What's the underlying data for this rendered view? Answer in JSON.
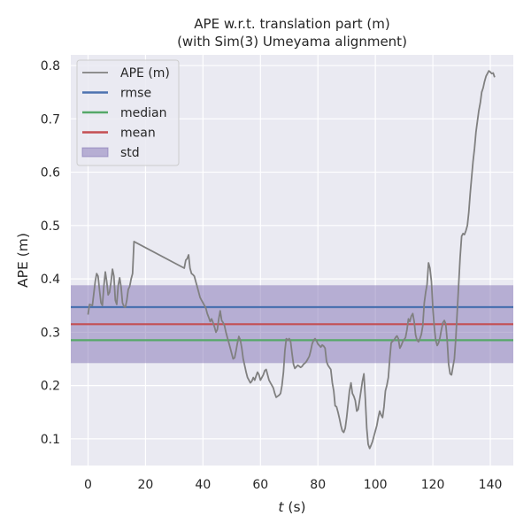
{
  "chart_data": {
    "type": "line",
    "title": "APE w.r.t. translation part (m)",
    "subtitle": "(with Sim(3) Umeyama alignment)",
    "xlabel_var": "t",
    "xlabel_unit": " (s)",
    "ylabel": "APE (m)",
    "xlim": [
      -6,
      148
    ],
    "ylim": [
      0.05,
      0.82
    ],
    "xticks": [
      0,
      20,
      40,
      60,
      80,
      100,
      120,
      140
    ],
    "yticks": [
      0.1,
      0.2,
      0.3,
      0.4,
      0.5,
      0.6,
      0.7,
      0.8
    ],
    "grid": true,
    "legend_position": "top-left",
    "colors": {
      "background": "#eaeaf2",
      "grid": "#ffffff",
      "ape": "#808080",
      "rmse": "#4c72b0",
      "median": "#55a868",
      "mean": "#c44e52",
      "std": "#8172b3"
    },
    "stats": {
      "rmse": 0.347,
      "median": 0.285,
      "mean": 0.315,
      "std_low": 0.242,
      "std_high": 0.388
    },
    "legend": [
      {
        "key": "ape",
        "label": "APE (m)",
        "kind": "line"
      },
      {
        "key": "rmse",
        "label": "rmse",
        "kind": "line"
      },
      {
        "key": "median",
        "label": "median",
        "kind": "line"
      },
      {
        "key": "mean",
        "label": "mean",
        "kind": "line"
      },
      {
        "key": "std",
        "label": "std",
        "kind": "patch"
      }
    ],
    "series": [
      {
        "key": "ape",
        "x": [
          0,
          0.5,
          1.5,
          2.5,
          3,
          3.5,
          4,
          4.5,
          5,
          5.5,
          6,
          6.5,
          7,
          7.5,
          8,
          8.5,
          9,
          9.5,
          10,
          10.5,
          11,
          11.5,
          12,
          12.5,
          13,
          13.5,
          14,
          14.5,
          15,
          15.5,
          16,
          33.5,
          34,
          34.5,
          35,
          35.5,
          36,
          36.5,
          37,
          37.5,
          38,
          38.5,
          39,
          39.5,
          40,
          40.5,
          41,
          41.5,
          42,
          42.5,
          43,
          43.5,
          44,
          44.5,
          45,
          45.5,
          46,
          46.5,
          47,
          47.5,
          48,
          48.5,
          49,
          49.5,
          50,
          50.5,
          51,
          51.5,
          52,
          52.5,
          53,
          53.5,
          54,
          54.5,
          55,
          55.5,
          56,
          56.5,
          57,
          57.5,
          58,
          58.5,
          59,
          59.5,
          60,
          60.5,
          61,
          61.5,
          62,
          62.5,
          63,
          63.5,
          64,
          64.5,
          65,
          65.5,
          66,
          66.5,
          67,
          67.5,
          68,
          68.5,
          69,
          69.5,
          70,
          70.5,
          71,
          71.5,
          72,
          72.5,
          73,
          73.5,
          74,
          74.5,
          75,
          75.5,
          76,
          76.5,
          77,
          77.5,
          78,
          78.5,
          79,
          79.5,
          80,
          80.5,
          81,
          81.5,
          82,
          82.5,
          83,
          83.5,
          84,
          84.5,
          85,
          85.5,
          86,
          86.5,
          87,
          87.5,
          88,
          88.5,
          89,
          89.5,
          90,
          90.5,
          91,
          91.5,
          92,
          92.5,
          93,
          93.5,
          94,
          94.5,
          95,
          95.5,
          96,
          96.5,
          97,
          97.5,
          98,
          98.5,
          99,
          99.5,
          100,
          100.5,
          101,
          101.5,
          102,
          102.5,
          103,
          103.5,
          104,
          104.5,
          105,
          105.5,
          106,
          106.5,
          107,
          107.5,
          108,
          108.5,
          109,
          109.5,
          110,
          110.5,
          111,
          111.5,
          112,
          112.5,
          113,
          113.5,
          114,
          114.5,
          115,
          115.5,
          116,
          116.5,
          117,
          117.5,
          118,
          118.5,
          119,
          119.5,
          120,
          120.5,
          121,
          121.5,
          122,
          122.5,
          123,
          123.5,
          124,
          124.5,
          125,
          125.5,
          126,
          126.5,
          127,
          127.5,
          128,
          128.5,
          129,
          129.5,
          130,
          130.5,
          131,
          131.5,
          132,
          132.5,
          133,
          133.5,
          134,
          134.5,
          135,
          135.5,
          136,
          136.5,
          137,
          137.5,
          138,
          138.5,
          139,
          139.5,
          140,
          140.5,
          141,
          141.5
        ],
        "values": [
          0.333,
          0.352,
          0.35,
          0.395,
          0.41,
          0.405,
          0.378,
          0.355,
          0.35,
          0.385,
          0.413,
          0.395,
          0.37,
          0.375,
          0.395,
          0.418,
          0.405,
          0.36,
          0.352,
          0.388,
          0.402,
          0.385,
          0.355,
          0.348,
          0.347,
          0.36,
          0.38,
          0.386,
          0.4,
          0.41,
          0.47,
          0.42,
          0.435,
          0.438,
          0.445,
          0.42,
          0.41,
          0.408,
          0.405,
          0.395,
          0.385,
          0.375,
          0.365,
          0.36,
          0.355,
          0.35,
          0.345,
          0.335,
          0.328,
          0.32,
          0.325,
          0.318,
          0.31,
          0.3,
          0.305,
          0.325,
          0.34,
          0.322,
          0.318,
          0.312,
          0.3,
          0.29,
          0.28,
          0.27,
          0.26,
          0.25,
          0.252,
          0.265,
          0.28,
          0.292,
          0.285,
          0.27,
          0.25,
          0.238,
          0.225,
          0.215,
          0.21,
          0.205,
          0.208,
          0.215,
          0.21,
          0.218,
          0.225,
          0.22,
          0.21,
          0.215,
          0.22,
          0.228,
          0.23,
          0.22,
          0.21,
          0.205,
          0.2,
          0.195,
          0.185,
          0.178,
          0.18,
          0.182,
          0.185,
          0.2,
          0.225,
          0.265,
          0.288,
          0.285,
          0.288,
          0.282,
          0.26,
          0.24,
          0.232,
          0.235,
          0.238,
          0.236,
          0.234,
          0.236,
          0.24,
          0.242,
          0.245,
          0.25,
          0.255,
          0.265,
          0.278,
          0.285,
          0.288,
          0.284,
          0.278,
          0.275,
          0.272,
          0.276,
          0.274,
          0.27,
          0.245,
          0.238,
          0.234,
          0.23,
          0.205,
          0.19,
          0.162,
          0.16,
          0.15,
          0.138,
          0.125,
          0.115,
          0.112,
          0.12,
          0.14,
          0.165,
          0.19,
          0.205,
          0.185,
          0.18,
          0.172,
          0.152,
          0.155,
          0.172,
          0.19,
          0.208,
          0.222,
          0.175,
          0.12,
          0.09,
          0.082,
          0.088,
          0.095,
          0.105,
          0.115,
          0.125,
          0.14,
          0.152,
          0.145,
          0.14,
          0.16,
          0.19,
          0.2,
          0.215,
          0.25,
          0.28,
          0.283,
          0.285,
          0.29,
          0.293,
          0.288,
          0.27,
          0.275,
          0.282,
          0.286,
          0.29,
          0.305,
          0.325,
          0.32,
          0.33,
          0.335,
          0.32,
          0.295,
          0.285,
          0.282,
          0.288,
          0.296,
          0.312,
          0.355,
          0.375,
          0.39,
          0.43,
          0.42,
          0.395,
          0.345,
          0.31,
          0.285,
          0.275,
          0.28,
          0.29,
          0.305,
          0.318,
          0.322,
          0.315,
          0.285,
          0.24,
          0.222,
          0.22,
          0.235,
          0.25,
          0.29,
          0.34,
          0.39,
          0.44,
          0.48,
          0.485,
          0.483,
          0.49,
          0.5,
          0.525,
          0.56,
          0.59,
          0.62,
          0.645,
          0.675,
          0.695,
          0.715,
          0.73,
          0.75,
          0.758,
          0.77,
          0.78,
          0.785,
          0.79,
          0.788,
          0.785,
          0.786,
          0.778
        ]
      }
    ]
  }
}
